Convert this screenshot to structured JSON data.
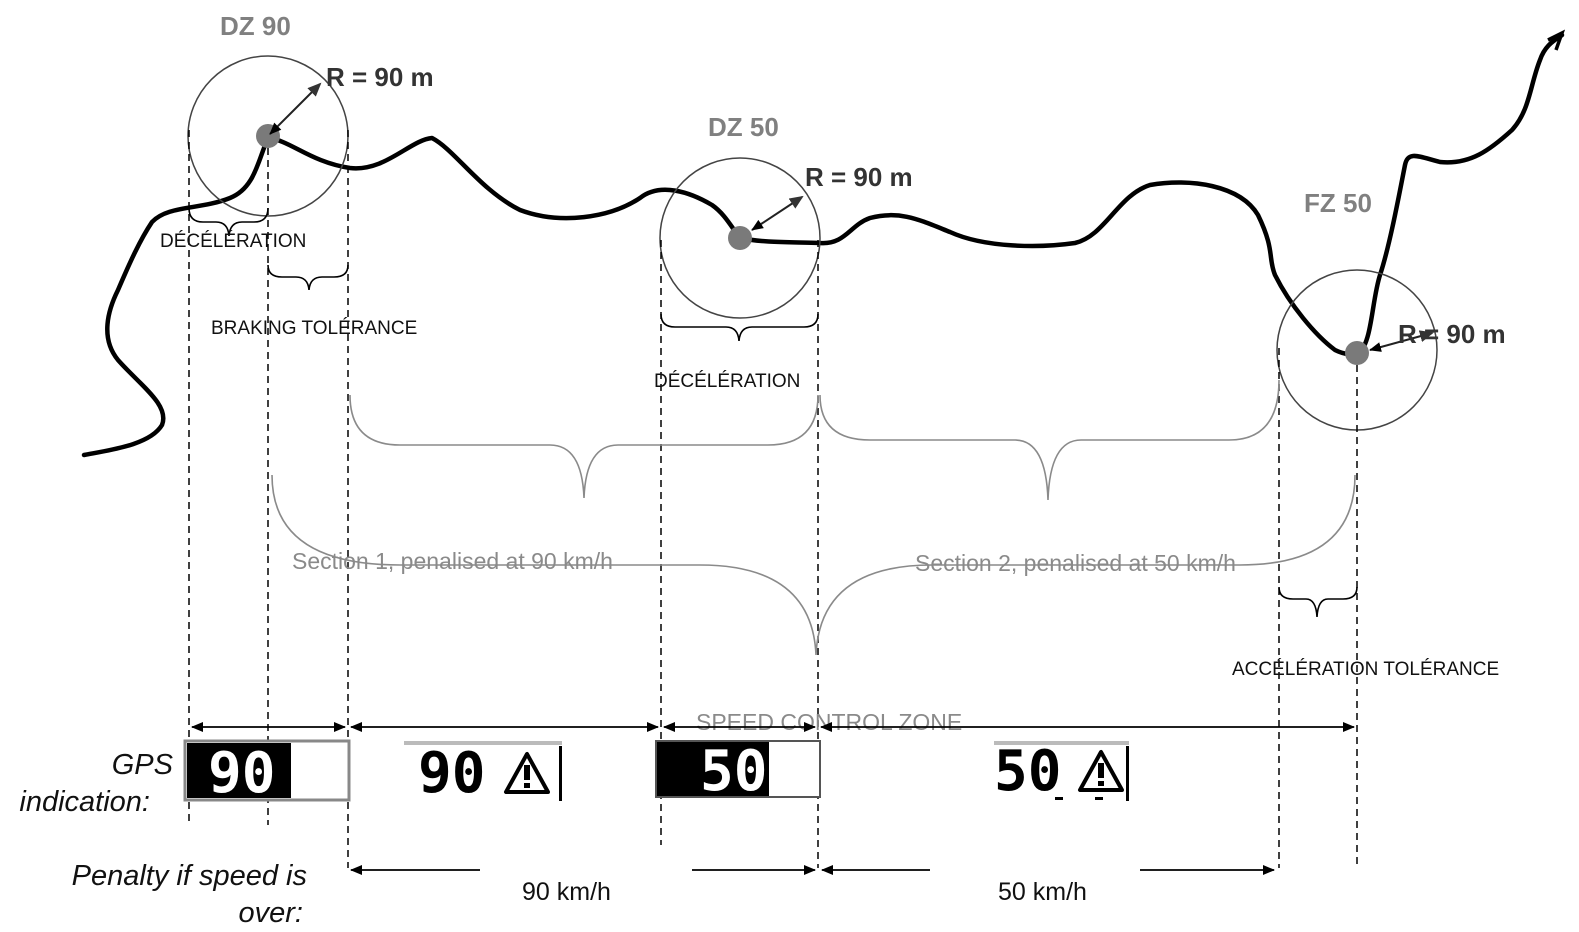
{
  "zones": {
    "dz90": {
      "name": "DZ 90",
      "radius": "R = 90 m"
    },
    "dz50": {
      "name": "DZ 50",
      "radius": "R = 90 m"
    },
    "fz50": {
      "name": "FZ 50",
      "radius": "R = 90 m"
    }
  },
  "labels": {
    "deceleration_1": "DÉCÉLÉRATION",
    "braking_tolerance": "BRAKING TOLÉRANCE",
    "deceleration_2": "DÉCÉLÉRATION",
    "acceleration_tolerance": "ACCÉLÉRATION TOLÉRANCE",
    "section_1": "Section 1, penalised at 90 km/h",
    "section_2": "Section 2, penalised at 50 km/h",
    "speed_control_zone": "SPEED CONTROL ZONE"
  },
  "gps": {
    "label_line1": "GPS",
    "label_line2": "indication:",
    "displays": [
      {
        "value": "90",
        "style": "filled"
      },
      {
        "value": "90",
        "style": "warning"
      },
      {
        "value": "50",
        "style": "filled"
      },
      {
        "value": "50",
        "style": "warning"
      }
    ]
  },
  "penalty": {
    "label_line1": "Penalty if speed is",
    "label_line2": "over:",
    "speed_1": "90 km/h",
    "speed_2": "50 km/h"
  },
  "colors": {
    "route": "#000000",
    "zone_label": "#808080",
    "bracket_grey": "#8a8a8a"
  }
}
